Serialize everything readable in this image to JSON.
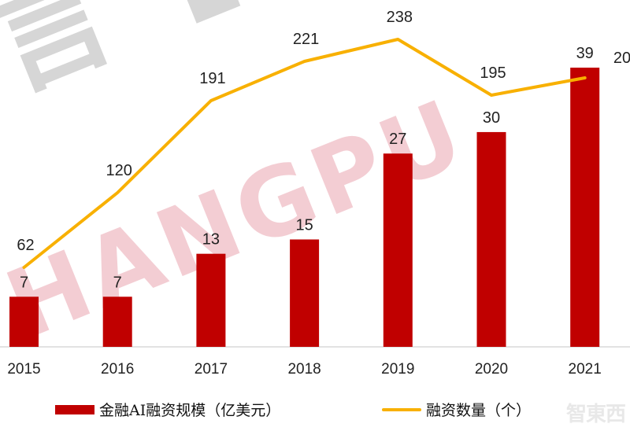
{
  "chart_data": {
    "type": "bar",
    "title": "",
    "xlabel": "",
    "ylabel": "",
    "categories": [
      "2015",
      "2016",
      "2017",
      "2018",
      "2019",
      "2020",
      "2021"
    ],
    "series": [
      {
        "name": "金融AI融资规模（亿美元）",
        "type": "bar",
        "color": "#c00000",
        "values": [
          7,
          7,
          13,
          15,
          27,
          30,
          39
        ]
      },
      {
        "name": "融资数量（个）",
        "type": "line",
        "color": "#f8b000",
        "values": [
          62,
          120,
          191,
          221,
          238,
          195,
          20
        ]
      }
    ],
    "data_labels_bar": [
      "7",
      "7",
      "13",
      "15",
      "27",
      "30",
      "39"
    ],
    "data_labels_line": [
      "62",
      "120",
      "191",
      "221",
      "238",
      "195",
      "20"
    ],
    "grid": false,
    "legend_position": "bottom",
    "notes": "Last line label is cropped at image edge, showing '20'."
  },
  "legend": {
    "bar_label": "金融AI融资规模（亿美元）",
    "line_label": "融资数量（个）"
  },
  "watermark": {
    "text": "HANGPU",
    "logo_text": "智東西"
  }
}
